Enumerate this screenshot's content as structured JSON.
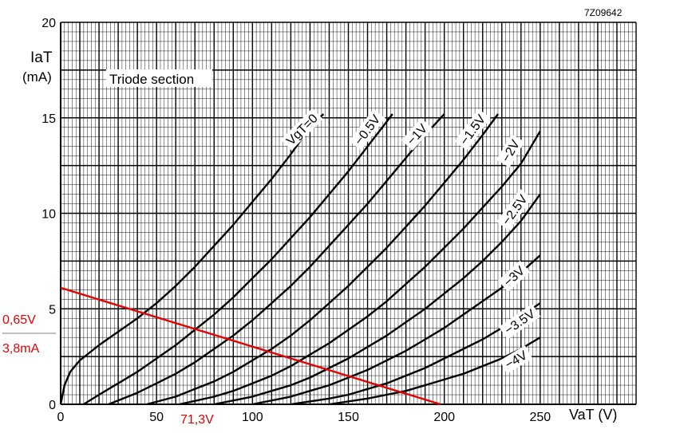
{
  "chart_data": {
    "type": "line",
    "title": "Triode section",
    "doc_code": "7Z09642",
    "xlabel": "VaT (V)",
    "ylabel": "IaT",
    "ylabel_unit": "(mA)",
    "xlim": [
      0,
      300
    ],
    "ylim": [
      0,
      20
    ],
    "x_ticks": [
      "0",
      "50",
      "100",
      "150",
      "200",
      "250"
    ],
    "y_ticks": [
      "0",
      "5",
      "10",
      "15",
      "20"
    ],
    "grid": true,
    "series": [
      {
        "name": "VgT=0",
        "label": "VgT=0",
        "points": [
          [
            0,
            0
          ],
          [
            2,
            1
          ],
          [
            5,
            1.7
          ],
          [
            10,
            2.3
          ],
          [
            20,
            3.1
          ],
          [
            30,
            3.8
          ],
          [
            40,
            4.5
          ],
          [
            50,
            5.3
          ],
          [
            60,
            6.2
          ],
          [
            70,
            7.2
          ],
          [
            80,
            8.3
          ],
          [
            90,
            9.4
          ],
          [
            100,
            10.6
          ],
          [
            110,
            11.8
          ],
          [
            120,
            13.1
          ],
          [
            130,
            14.5
          ],
          [
            137,
            15.2
          ]
        ]
      },
      {
        "name": "-0.5V",
        "label": "−0.5V",
        "points": [
          [
            12,
            0
          ],
          [
            20,
            0.5
          ],
          [
            30,
            1.1
          ],
          [
            40,
            1.7
          ],
          [
            50,
            2.4
          ],
          [
            60,
            3.1
          ],
          [
            70,
            3.9
          ],
          [
            80,
            4.7
          ],
          [
            90,
            5.6
          ],
          [
            100,
            6.6
          ],
          [
            110,
            7.6
          ],
          [
            120,
            8.7
          ],
          [
            130,
            9.8
          ],
          [
            140,
            11
          ],
          [
            150,
            12.2
          ],
          [
            160,
            13.5
          ],
          [
            170,
            14.8
          ],
          [
            173,
            15.2
          ]
        ]
      },
      {
        "name": "-1V",
        "label": "−1V",
        "points": [
          [
            25,
            0
          ],
          [
            40,
            0.6
          ],
          [
            50,
            1.1
          ],
          [
            60,
            1.6
          ],
          [
            70,
            2.2
          ],
          [
            80,
            2.9
          ],
          [
            90,
            3.6
          ],
          [
            100,
            4.4
          ],
          [
            110,
            5.3
          ],
          [
            120,
            6.2
          ],
          [
            130,
            7.2
          ],
          [
            140,
            8.3
          ],
          [
            150,
            9.4
          ],
          [
            160,
            10.5
          ],
          [
            170,
            11.7
          ],
          [
            180,
            12.9
          ],
          [
            190,
            14.1
          ],
          [
            200,
            15.2
          ]
        ]
      },
      {
        "name": "-1.5V",
        "label": "−1.5V",
        "points": [
          [
            45,
            0
          ],
          [
            60,
            0.4
          ],
          [
            70,
            0.8
          ],
          [
            80,
            1.2
          ],
          [
            90,
            1.7
          ],
          [
            100,
            2.3
          ],
          [
            110,
            2.9
          ],
          [
            120,
            3.6
          ],
          [
            130,
            4.4
          ],
          [
            140,
            5.3
          ],
          [
            150,
            6.2
          ],
          [
            160,
            7.2
          ],
          [
            170,
            8.2
          ],
          [
            180,
            9.3
          ],
          [
            190,
            10.4
          ],
          [
            200,
            11.6
          ],
          [
            210,
            12.8
          ],
          [
            220,
            14.1
          ],
          [
            228,
            15.2
          ]
        ]
      },
      {
        "name": "-2V",
        "label": "−2V",
        "points": [
          [
            62,
            0
          ],
          [
            80,
            0.4
          ],
          [
            90,
            0.7
          ],
          [
            100,
            1.1
          ],
          [
            110,
            1.5
          ],
          [
            120,
            2
          ],
          [
            130,
            2.6
          ],
          [
            140,
            3.2
          ],
          [
            150,
            3.9
          ],
          [
            160,
            4.6
          ],
          [
            170,
            5.4
          ],
          [
            180,
            6.3
          ],
          [
            190,
            7.2
          ],
          [
            200,
            8.2
          ],
          [
            210,
            9.2
          ],
          [
            220,
            10.3
          ],
          [
            230,
            11.4
          ],
          [
            240,
            12.6
          ],
          [
            250,
            14.3
          ]
        ]
      },
      {
        "name": "-2.5V",
        "label": "−2.5V",
        "points": [
          [
            80,
            0
          ],
          [
            100,
            0.4
          ],
          [
            110,
            0.7
          ],
          [
            120,
            1
          ],
          [
            130,
            1.4
          ],
          [
            140,
            1.9
          ],
          [
            150,
            2.4
          ],
          [
            160,
            3
          ],
          [
            170,
            3.6
          ],
          [
            180,
            4.3
          ],
          [
            190,
            5
          ],
          [
            200,
            5.8
          ],
          [
            210,
            6.6
          ],
          [
            220,
            7.5
          ],
          [
            230,
            8.5
          ],
          [
            240,
            9.6
          ],
          [
            250,
            11
          ]
        ]
      },
      {
        "name": "-3V",
        "label": "−3V",
        "points": [
          [
            100,
            0
          ],
          [
            120,
            0.4
          ],
          [
            130,
            0.7
          ],
          [
            140,
            1
          ],
          [
            150,
            1.4
          ],
          [
            160,
            1.8
          ],
          [
            170,
            2.3
          ],
          [
            180,
            2.8
          ],
          [
            190,
            3.4
          ],
          [
            200,
            4
          ],
          [
            210,
            4.7
          ],
          [
            220,
            5.4
          ],
          [
            230,
            6.1
          ],
          [
            240,
            6.9
          ],
          [
            250,
            7.8
          ]
        ]
      },
      {
        "name": "-3.5V",
        "label": "−3.5V",
        "points": [
          [
            120,
            0
          ],
          [
            140,
            0.3
          ],
          [
            150,
            0.5
          ],
          [
            160,
            0.8
          ],
          [
            170,
            1.1
          ],
          [
            180,
            1.5
          ],
          [
            190,
            1.9
          ],
          [
            200,
            2.4
          ],
          [
            210,
            2.9
          ],
          [
            220,
            3.4
          ],
          [
            230,
            4
          ],
          [
            240,
            4.6
          ],
          [
            250,
            5.3
          ]
        ]
      },
      {
        "name": "-4V",
        "label": "−4V",
        "points": [
          [
            140,
            0
          ],
          [
            160,
            0.3
          ],
          [
            170,
            0.5
          ],
          [
            180,
            0.7
          ],
          [
            190,
            1
          ],
          [
            200,
            1.3
          ],
          [
            210,
            1.6
          ],
          [
            220,
            2
          ],
          [
            230,
            2.4
          ],
          [
            240,
            2.9
          ],
          [
            250,
            3.5
          ]
        ]
      }
    ],
    "load_line": {
      "color": "#e60000",
      "points": [
        [
          0,
          6.1
        ],
        [
          198,
          0
        ]
      ]
    },
    "annotations": {
      "x_value": "71,3V",
      "y_value_top": "0,65V",
      "y_value_bottom": "3,8mA",
      "color": "#e60000"
    }
  }
}
